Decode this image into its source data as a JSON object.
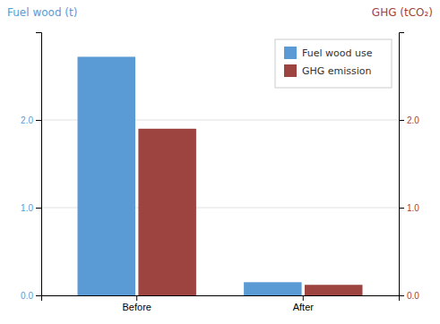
{
  "chart_data": {
    "type": "bar",
    "ylabel": "Fuel wood (t)",
    "y2label": "GHG (tCO₂)",
    "categories": [
      "Before",
      "After"
    ],
    "series": [
      {
        "name": "Fuel wood use",
        "color": "#5b9bd5",
        "values": [
          2.72,
          0.15
        ]
      },
      {
        "name": "GHG emission",
        "color": "#9e4440",
        "values": [
          1.9,
          0.12
        ]
      }
    ],
    "ylim": [
      0.0,
      3.0
    ],
    "yticks": [
      {
        "value": 0.0,
        "label": "0.0"
      },
      {
        "value": 1.0,
        "label": "1.0"
      },
      {
        "value": 2.0,
        "label": "2.0"
      }
    ],
    "y2lim": [
      0.0,
      3.0
    ],
    "y2ticks": [
      {
        "value": 0.0,
        "label": "0.0"
      },
      {
        "value": 1.0,
        "label": "1.0"
      },
      {
        "value": 2.0,
        "label": "2.0"
      }
    ],
    "grid": true,
    "legend": "upper right"
  }
}
